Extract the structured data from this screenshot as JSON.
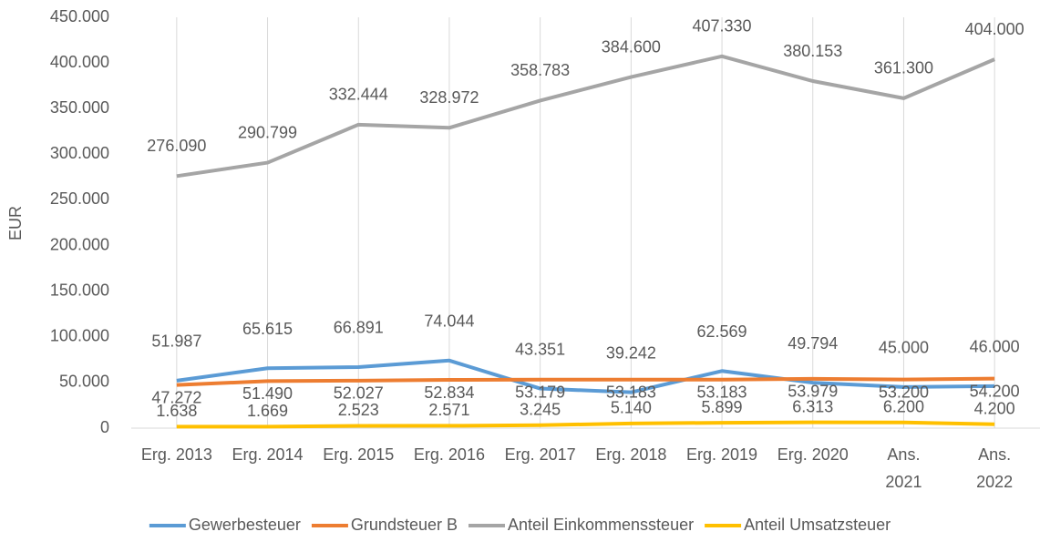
{
  "chart_data": {
    "type": "line",
    "y_label": "EUR",
    "categories": [
      "Erg. 2013",
      "Erg. 2014",
      "Erg. 2015",
      "Erg. 2016",
      "Erg. 2017",
      "Erg. 2018",
      "Erg. 2019",
      "Erg. 2020",
      "Ans. 2021",
      "Ans. 2022"
    ],
    "series": [
      {
        "name": "Gewerbesteuer",
        "color": "#5b9bd5",
        "values": [
          51987,
          65615,
          66891,
          74044,
          43351,
          39242,
          62569,
          49794,
          45000,
          46000
        ],
        "value_labels": [
          "51.987",
          "65.615",
          "66.891",
          "74.044",
          "43.351",
          "39.242",
          "62.569",
          "49.794",
          "45.000",
          "46.000"
        ]
      },
      {
        "name": "Grundsteuer B",
        "color": "#ed7d31",
        "values": [
          47272,
          51490,
          52027,
          52834,
          53179,
          53183,
          53183,
          53979,
          53200,
          54200
        ],
        "value_labels": [
          "47.272",
          "51.490",
          "52.027",
          "52.834",
          "53.179",
          "53.183",
          "53.183",
          "53.979",
          "53.200",
          "54.200"
        ]
      },
      {
        "name": "Anteil Einkommenssteuer",
        "color": "#a5a5a5",
        "values": [
          276090,
          290799,
          332444,
          328972,
          358783,
          384600,
          407330,
          380153,
          361300,
          404000
        ],
        "value_labels": [
          "276.090",
          "290.799",
          "332.444",
          "328.972",
          "358.783",
          "384.600",
          "407.330",
          "380.153",
          "361.300",
          "404.000"
        ]
      },
      {
        "name": "Anteil Umsatzsteuer",
        "color": "#ffc000",
        "values": [
          1638,
          1669,
          2523,
          2571,
          3245,
          5140,
          5899,
          6313,
          6200,
          4200
        ],
        "value_labels": [
          "1.638",
          "1.669",
          "2.523",
          "2.571",
          "3.245",
          "5.140",
          "5.899",
          "6.313",
          "6.200",
          "4.200"
        ]
      }
    ],
    "ylim": [
      0,
      450000
    ],
    "yticks": [
      0,
      {
        "value": 50000,
        "label": "50.000"
      },
      {
        "value": 100000,
        "label": "100.000"
      },
      {
        "value": 150000,
        "label": "150.000"
      },
      {
        "value": 200000,
        "label": "200.000"
      },
      {
        "value": 250000,
        "label": "250.000"
      },
      {
        "value": 300000,
        "label": "300.000"
      },
      {
        "value": 350000,
        "label": "350.000"
      },
      {
        "value": 400000,
        "label": "400.000"
      },
      {
        "value": 450000,
        "label": "450.000"
      }
    ],
    "grid": "x",
    "legend": "bottom"
  }
}
